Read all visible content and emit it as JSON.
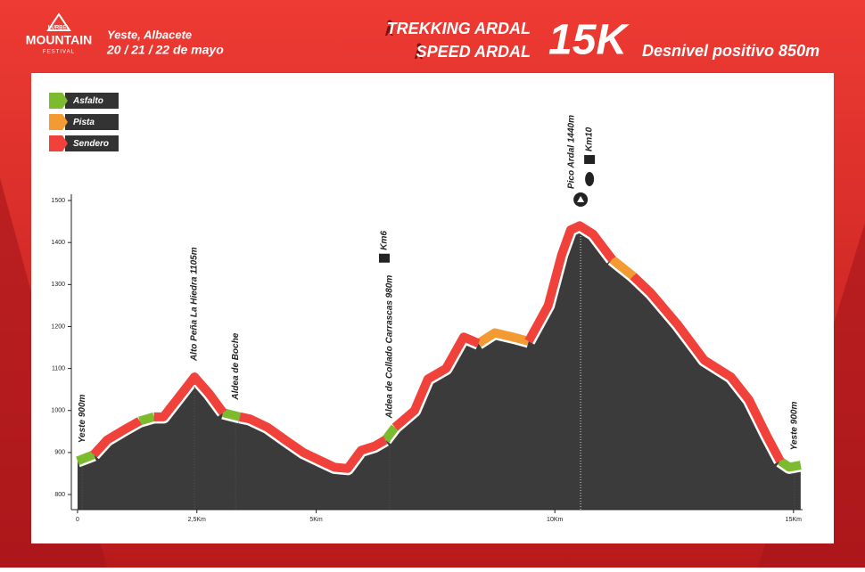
{
  "header": {
    "brand": "LURBEL",
    "logo": "MOUNTAIN",
    "logo_sub": "FESTIVAL",
    "place": "Yeste, Albacete",
    "dates": "20 / 21 / 22 de mayo",
    "race1": "TREKKING ARDAL",
    "race2": "SPEED ARDAL",
    "distance": "15K",
    "elevation_gain": "Desnivel positivo 850m"
  },
  "chart_data": {
    "type": "elevation-profile",
    "x": [
      0,
      0.34,
      0.62,
      0.99,
      1.3,
      1.45,
      1.6,
      1.8,
      2.11,
      2.45,
      2.76,
      3.05,
      3.22,
      3.4,
      3.61,
      3.98,
      4.35,
      4.73,
      5.1,
      5.38,
      5.66,
      5.94,
      6.22,
      6.45,
      6.55,
      6.65,
      7.06,
      7.34,
      7.72,
      8.09,
      8.4,
      8.74,
      9.12,
      9.45,
      9.86,
      10.14,
      10.33,
      10.52,
      10.8,
      11.2,
      11.42,
      11.64,
      12.01,
      12.57,
      13.13,
      13.69,
      14.07,
      14.44,
      14.72,
      14.91,
      15.15
    ],
    "series": [
      {
        "name": "Asfalto",
        "color": "#7dbb2e",
        "values": [
          880,
          895,
          null,
          null,
          975,
          980,
          985,
          null,
          null,
          null,
          null,
          995,
          990,
          985,
          null,
          null,
          null,
          null,
          null,
          null,
          null,
          null,
          null,
          930,
          945,
          960,
          null,
          null,
          null,
          null,
          null,
          null,
          null,
          null,
          null,
          null,
          null,
          null,
          null,
          null,
          null,
          null,
          null,
          null,
          null,
          null,
          null,
          null,
          880,
          865,
          870
        ]
      },
      {
        "name": "Pista",
        "color": "#f39a32",
        "values": [
          null,
          null,
          null,
          null,
          null,
          null,
          null,
          null,
          null,
          null,
          null,
          null,
          null,
          null,
          null,
          null,
          null,
          null,
          null,
          null,
          null,
          null,
          null,
          null,
          null,
          null,
          null,
          null,
          null,
          null,
          1160,
          1185,
          1175,
          1165,
          null,
          null,
          null,
          null,
          null,
          1360,
          1340,
          1320,
          null,
          null,
          null,
          null,
          null,
          null,
          null,
          null,
          null
        ]
      },
      {
        "name": "Sendero",
        "color": "#f0413b",
        "values": [
          null,
          895,
          930,
          955,
          975,
          null,
          985,
          985,
          1030,
          1080,
          1040,
          995,
          null,
          985,
          980,
          960,
          930,
          900,
          880,
          865,
          862,
          905,
          915,
          930,
          null,
          960,
          1000,
          1075,
          1100,
          1175,
          1160,
          null,
          null,
          1165,
          1250,
          1370,
          1430,
          1440,
          1420,
          1360,
          null,
          1320,
          1280,
          1205,
          1120,
          1080,
          1025,
          940,
          880,
          null,
          null
        ]
      }
    ],
    "area_color": "#3b3b3b",
    "annotations": [
      {
        "text": "Yeste 900m",
        "x": 0.1
      },
      {
        "text": "Alto Peña La Hiedra 1105m",
        "x": 2.45
      },
      {
        "text": "Aldea de Boche",
        "x": 3.31
      },
      {
        "text": "Aldea de Collado Carrascas 980m",
        "x": 6.54,
        "badge": "Km6"
      },
      {
        "text": "Pico Ardal 1440m",
        "x": 10.54,
        "badge": "Km10"
      },
      {
        "text": "Yeste 900m",
        "x": 15.02
      }
    ],
    "xlim": [
      -0.13,
      15.19
    ],
    "xticks": [
      0,
      {
        "value": 2.5,
        "label": "2,5Km"
      },
      {
        "value": 5,
        "label": "5Km"
      },
      {
        "value": 10,
        "label": "10Km"
      },
      {
        "value": 15,
        "label": "15Km"
      }
    ],
    "ylim": [
      764,
      1515
    ],
    "yticks": [
      800,
      900,
      1000,
      1100,
      1200,
      1300,
      1400,
      1500
    ],
    "legend": "top-left"
  }
}
